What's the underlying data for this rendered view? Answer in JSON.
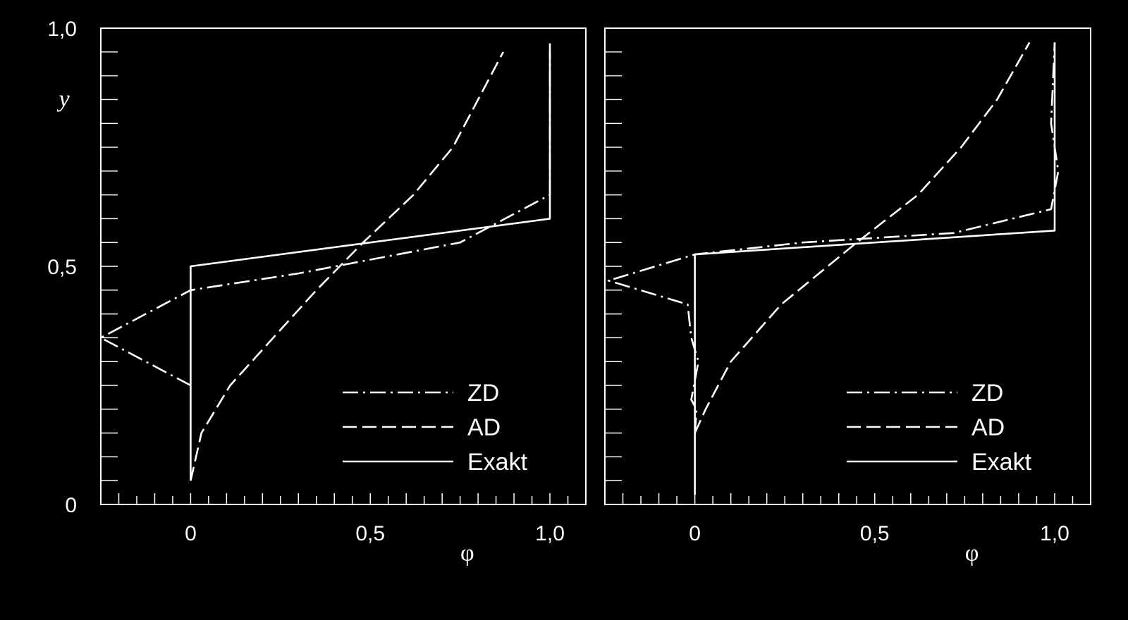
{
  "chart_data": [
    {
      "type": "line",
      "xlabel": "φ",
      "ylabel": "y",
      "xlim": [
        -0.25,
        1.1
      ],
      "ylim": [
        0,
        1.0
      ],
      "x_tick_labels": [
        {
          "value": 0,
          "label": "0"
        },
        {
          "value": 0.5,
          "label": "0,5"
        },
        {
          "value": 1.0,
          "label": "1,0"
        }
      ],
      "y_tick_labels": [
        {
          "value": 0,
          "label": "0"
        },
        {
          "value": 0.5,
          "label": "0,5"
        },
        {
          "value": 1.0,
          "label": "1,0"
        }
      ],
      "legend_position": "bottom-right",
      "series": [
        {
          "name": "ZD",
          "style": "dash-dot",
          "points": [
            [
              0,
              0.25
            ],
            [
              -0.25,
              0.35
            ],
            [
              0,
              0.45
            ],
            [
              0.3,
              0.485
            ],
            [
              0.75,
              0.55
            ],
            [
              1.0,
              0.65
            ],
            [
              1.0,
              0.97
            ]
          ]
        },
        {
          "name": "AD",
          "style": "dashed",
          "points": [
            [
              0,
              0.05
            ],
            [
              0.03,
              0.15
            ],
            [
              0.11,
              0.25
            ],
            [
              0.23,
              0.35
            ],
            [
              0.35,
              0.45
            ],
            [
              0.48,
              0.55
            ],
            [
              0.62,
              0.65
            ],
            [
              0.73,
              0.75
            ],
            [
              0.8,
              0.85
            ],
            [
              0.87,
              0.95
            ]
          ]
        },
        {
          "name": "Exakt",
          "style": "solid",
          "points": [
            [
              0,
              0.05
            ],
            [
              0,
              0.5
            ],
            [
              1.0,
              0.6
            ],
            [
              1.0,
              0.95
            ]
          ]
        }
      ]
    },
    {
      "type": "line",
      "xlabel": "φ",
      "ylabel": "",
      "xlim": [
        -0.25,
        1.1
      ],
      "ylim": [
        0,
        1.0
      ],
      "x_tick_labels": [
        {
          "value": 0,
          "label": "0"
        },
        {
          "value": 0.5,
          "label": "0,5"
        },
        {
          "value": 1.0,
          "label": "1,0"
        }
      ],
      "y_tick_labels": [],
      "legend_position": "bottom-right",
      "series": [
        {
          "name": "ZD",
          "style": "dash-dot",
          "points": [
            [
              0.0,
              0.15
            ],
            [
              0.005,
              0.2
            ],
            [
              -0.01,
              0.22
            ],
            [
              0.01,
              0.3
            ],
            [
              -0.01,
              0.35
            ],
            [
              -0.02,
              0.42
            ],
            [
              -0.24,
              0.47
            ],
            [
              0.0,
              0.525
            ],
            [
              0.3,
              0.55
            ],
            [
              0.72,
              0.57
            ],
            [
              0.99,
              0.62
            ],
            [
              1.01,
              0.7
            ],
            [
              0.99,
              0.8
            ],
            [
              1.0,
              0.97
            ]
          ]
        },
        {
          "name": "AD",
          "style": "dashed",
          "points": [
            [
              0.0,
              0.15
            ],
            [
              0.03,
              0.2
            ],
            [
              0.1,
              0.3
            ],
            [
              0.24,
              0.42
            ],
            [
              0.45,
              0.55
            ],
            [
              0.62,
              0.65
            ],
            [
              0.74,
              0.75
            ],
            [
              0.84,
              0.85
            ],
            [
              0.93,
              0.97
            ]
          ]
        },
        {
          "name": "Exakt",
          "style": "solid",
          "points": [
            [
              0,
              0.02
            ],
            [
              0,
              0.525
            ],
            [
              1.0,
              0.575
            ],
            [
              1.0,
              0.97
            ]
          ]
        }
      ]
    }
  ]
}
